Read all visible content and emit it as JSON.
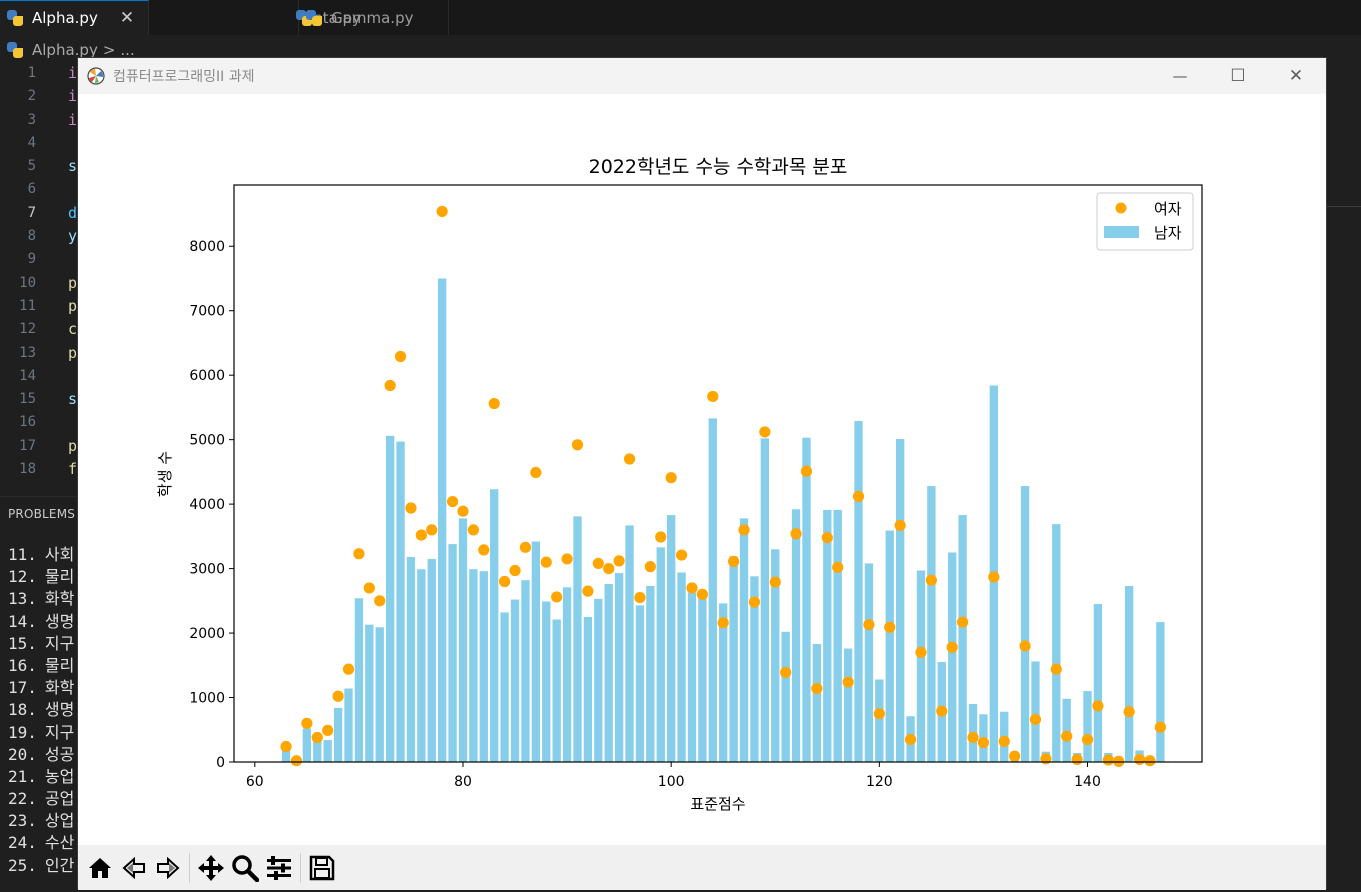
{
  "editor": {
    "tabs": [
      {
        "label": "Alpha.py",
        "active": true
      },
      {
        "label": "Beta.py",
        "active": false
      },
      {
        "label": "Gamma.py",
        "active": false
      }
    ],
    "tab_close_glyph": "✕",
    "breadcrumb": {
      "file": "Alpha.py",
      "sep": ">",
      "rest": "..."
    },
    "line_numbers": [
      "1",
      "2",
      "3",
      "4",
      "5",
      "6",
      "7",
      "8",
      "9",
      "10",
      "11",
      "12",
      "13",
      "14",
      "15",
      "16",
      "17",
      "18"
    ],
    "code_lines": [
      "i",
      "i",
      "i",
      "",
      "s",
      "",
      "d",
      "y",
      "",
      "p",
      "p",
      "c",
      "p",
      "",
      "s",
      "",
      "p",
      "f"
    ],
    "panel_title": "PROBLEMS",
    "terminal_lines": [
      {
        "num": "11.",
        "text": "사회"
      },
      {
        "num": "12.",
        "text": "물리"
      },
      {
        "num": "13.",
        "text": "화학"
      },
      {
        "num": "14.",
        "text": "생명"
      },
      {
        "num": "15.",
        "text": "지구"
      },
      {
        "num": "16.",
        "text": "물리"
      },
      {
        "num": "17.",
        "text": "화학"
      },
      {
        "num": "18.",
        "text": "생명"
      },
      {
        "num": "19.",
        "text": "지구"
      },
      {
        "num": "20.",
        "text": "성공"
      },
      {
        "num": "21.",
        "text": "농업"
      },
      {
        "num": "22.",
        "text": "공업"
      },
      {
        "num": "23.",
        "text": "상업"
      },
      {
        "num": "24.",
        "text": "수산"
      },
      {
        "num": "25.",
        "text": "인간"
      }
    ]
  },
  "window": {
    "title": "컴퓨터프로그래밍II 과제",
    "minimize_glyph": "—",
    "maximize_glyph": "☐",
    "close_glyph": "✕"
  },
  "toolbar": [
    "home-icon",
    "back-icon",
    "forward-icon",
    "pan-icon",
    "zoom-icon",
    "configure-subplots-icon",
    "save-icon"
  ],
  "chart_data": {
    "type": "bar",
    "title": "2022학년도 수능 수학과목 분포",
    "xlabel": "표준점수",
    "ylabel": "학생 수",
    "xlim": [
      58,
      151
    ],
    "ylim": [
      0,
      8950
    ],
    "xticks": [
      60,
      80,
      100,
      120,
      140
    ],
    "yticks": [
      0,
      1000,
      2000,
      3000,
      4000,
      5000,
      6000,
      7000,
      8000
    ],
    "legend_position": "top-right",
    "x": [
      63,
      64,
      65,
      66,
      67,
      68,
      69,
      70,
      71,
      72,
      73,
      74,
      75,
      76,
      77,
      78,
      79,
      80,
      81,
      82,
      83,
      84,
      85,
      86,
      87,
      88,
      89,
      90,
      91,
      92,
      93,
      94,
      95,
      96,
      97,
      98,
      99,
      100,
      101,
      102,
      103,
      104,
      105,
      106,
      107,
      108,
      109,
      110,
      111,
      112,
      113,
      114,
      115,
      116,
      117,
      118,
      119,
      120,
      121,
      122,
      123,
      124,
      125,
      126,
      127,
      128,
      129,
      130,
      131,
      132,
      133,
      134,
      135,
      136,
      137,
      138,
      139,
      140,
      141,
      142,
      143,
      144,
      145,
      146,
      147
    ],
    "series": [
      {
        "name": "남자",
        "kind": "bar",
        "color": "#87ceeb",
        "values": [
          200,
          40,
          520,
          330,
          340,
          840,
          1140,
          2540,
          2130,
          2090,
          5060,
          4970,
          3180,
          2990,
          3150,
          7500,
          3380,
          3780,
          2990,
          2960,
          4230,
          2320,
          2520,
          2820,
          3420,
          2490,
          2210,
          2710,
          3810,
          2250,
          2530,
          2760,
          2930,
          3670,
          2430,
          2730,
          3330,
          3830,
          2940,
          2630,
          2570,
          5330,
          2460,
          3190,
          3780,
          2880,
          5020,
          3300,
          2020,
          3920,
          5030,
          1830,
          3910,
          3910,
          1760,
          5290,
          3080,
          1280,
          3590,
          5010,
          710,
          2970,
          4280,
          1550,
          3250,
          3830,
          900,
          740,
          5840,
          780,
          160,
          4280,
          1560,
          160,
          3690,
          980,
          140,
          1100,
          2450,
          140,
          60,
          2730,
          180,
          60,
          2170
        ]
      },
      {
        "name": "여자",
        "kind": "scatter",
        "color": "#ffa500",
        "values": [
          240,
          20,
          600,
          380,
          490,
          1020,
          1440,
          3230,
          2700,
          2500,
          5840,
          6290,
          3940,
          3520,
          3600,
          8540,
          4040,
          3890,
          3600,
          3290,
          5560,
          2800,
          2970,
          3330,
          4490,
          3100,
          2560,
          3150,
          4920,
          2650,
          3080,
          3000,
          3120,
          4700,
          2550,
          3030,
          3490,
          4410,
          3210,
          2700,
          2600,
          5670,
          2160,
          3110,
          3600,
          2480,
          5120,
          2790,
          1390,
          3540,
          4510,
          1140,
          3480,
          3020,
          1240,
          4120,
          2130,
          750,
          2090,
          3670,
          350,
          1700,
          2820,
          790,
          1780,
          2170,
          380,
          300,
          2870,
          320,
          90,
          1800,
          660,
          50,
          1440,
          400,
          40,
          350,
          870,
          30,
          10,
          780,
          40,
          20,
          540
        ]
      }
    ]
  }
}
